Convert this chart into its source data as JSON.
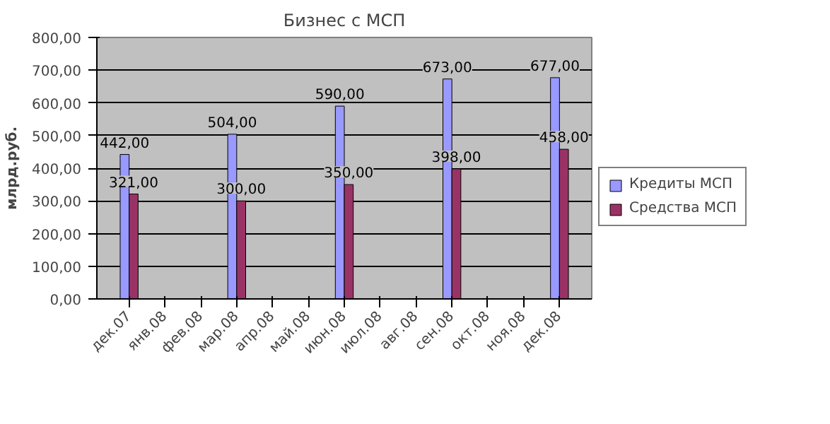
{
  "chart_data": {
    "type": "bar",
    "title": "Бизнес с МСП",
    "ylabel": "млрд.руб.",
    "categories": [
      "дек.07",
      "янв.08",
      "фев.08",
      "мар.08",
      "апр.08",
      "май.08",
      "июн.08",
      "июл.08",
      "авг.08",
      "сен.08",
      "окт.08",
      "ноя.08",
      "дек.08"
    ],
    "series": [
      {
        "name": "Кредиты МСП",
        "color": "#9999ff",
        "values": [
          442,
          null,
          null,
          504,
          null,
          null,
          590,
          null,
          null,
          673,
          null,
          null,
          677
        ],
        "value_labels": [
          "442,00",
          null,
          null,
          "504,00",
          null,
          null,
          "590,00",
          null,
          null,
          "673,00",
          null,
          null,
          "677,00"
        ]
      },
      {
        "name": "Средства МСП",
        "color": "#993366",
        "values": [
          321,
          null,
          null,
          300,
          null,
          null,
          350,
          null,
          null,
          398,
          null,
          null,
          458
        ],
        "value_labels": [
          "321,00",
          null,
          null,
          "300,00",
          null,
          null,
          "350,00",
          null,
          null,
          "398,00",
          null,
          null,
          "458,00"
        ]
      }
    ],
    "ylim": [
      0,
      800
    ],
    "yticks": [
      {
        "value": 0,
        "label": "0,00"
      },
      {
        "value": 100,
        "label": "100,00"
      },
      {
        "value": 200,
        "label": "200,00"
      },
      {
        "value": 300,
        "label": "300,00"
      },
      {
        "value": 400,
        "label": "400,00"
      },
      {
        "value": 500,
        "label": "500,00"
      },
      {
        "value": 600,
        "label": "600,00"
      },
      {
        "value": 700,
        "label": "700,00"
      },
      {
        "value": 800,
        "label": "800,00"
      }
    ],
    "grid": "y",
    "legend": "right"
  }
}
